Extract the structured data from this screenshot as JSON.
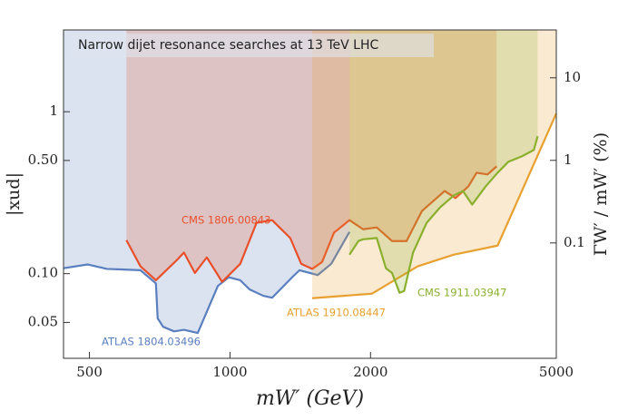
{
  "chart_data": {
    "type": "line",
    "title": "Narrow dijet resonance searches at 13 TeV LHC",
    "x_label": "mW′ (GeV)",
    "y_label": "|xud|",
    "y2_label": "ΓW′ / mW′ (%)",
    "log_x": true,
    "log_y": true,
    "xlim": [
      440,
      5000
    ],
    "xticks": [
      500,
      1000,
      2000,
      5000
    ],
    "ylim": [
      0.03,
      3.2
    ],
    "yticks": [
      0.05,
      {
        "value": 0.1,
        "label": "0.10"
      },
      {
        "value": 0.5,
        "label": "0.50"
      },
      1
    ],
    "y2lim": [
      0.004,
      38
    ],
    "y2ticks": [
      0.1,
      1,
      10
    ],
    "series": [
      {
        "name": "ATLAS 1804.03496",
        "color": "#5a7fbf",
        "x": [
          440,
          496,
          545,
          643,
          694,
          700,
          719,
          759,
          797,
          853,
          942,
          994,
          1052,
          1101,
          1178,
          1231,
          1359,
          1409,
          1541,
          1648,
          1803
        ],
        "values": [
          0.108,
          0.114,
          0.107,
          0.105,
          0.087,
          0.053,
          0.047,
          0.044,
          0.045,
          0.043,
          0.084,
          0.095,
          0.091,
          0.08,
          0.073,
          0.071,
          0.095,
          0.105,
          0.098,
          0.115,
          0.181
        ]
      },
      {
        "name": "CMS 1806.00843",
        "color": "#e8502a",
        "x": [
          600,
          643,
          694,
          769,
          797,
          841,
          892,
          962,
          1052,
          1140,
          1231,
          1346,
          1421,
          1500,
          1575,
          1670,
          1803,
          1928,
          2062,
          2224,
          2389,
          2578,
          2883,
          3041,
          3241,
          3375,
          3562,
          3726
        ],
        "values": [
          0.161,
          0.111,
          0.091,
          0.121,
          0.135,
          0.101,
          0.126,
          0.089,
          0.115,
          0.206,
          0.214,
          0.166,
          0.115,
          0.107,
          0.118,
          0.179,
          0.214,
          0.188,
          0.193,
          0.159,
          0.159,
          0.244,
          0.324,
          0.293,
          0.346,
          0.42,
          0.41,
          0.46
        ]
      },
      {
        "name": "ATLAS 1910.08447",
        "color": "#e8a030",
        "x": [
          1500,
          2013,
          2524,
          3017,
          3743,
          5000
        ],
        "values": [
          0.0705,
          0.0752,
          0.111,
          0.131,
          0.149,
          0.976
        ]
      },
      {
        "name": "CMS 1911.03947",
        "color": "#8ab02e",
        "x": [
          1803,
          1884,
          1928,
          2062,
          2158,
          2224,
          2308,
          2361,
          2467,
          2638,
          2820,
          3017,
          3155,
          3301,
          3530,
          3743,
          3947,
          4223,
          4477,
          4560
        ],
        "values": [
          0.131,
          0.159,
          0.163,
          0.166,
          0.108,
          0.101,
          0.0762,
          0.0782,
          0.135,
          0.206,
          0.257,
          0.304,
          0.324,
          0.267,
          0.346,
          0.42,
          0.491,
          0.531,
          0.581,
          0.706
        ]
      }
    ]
  }
}
